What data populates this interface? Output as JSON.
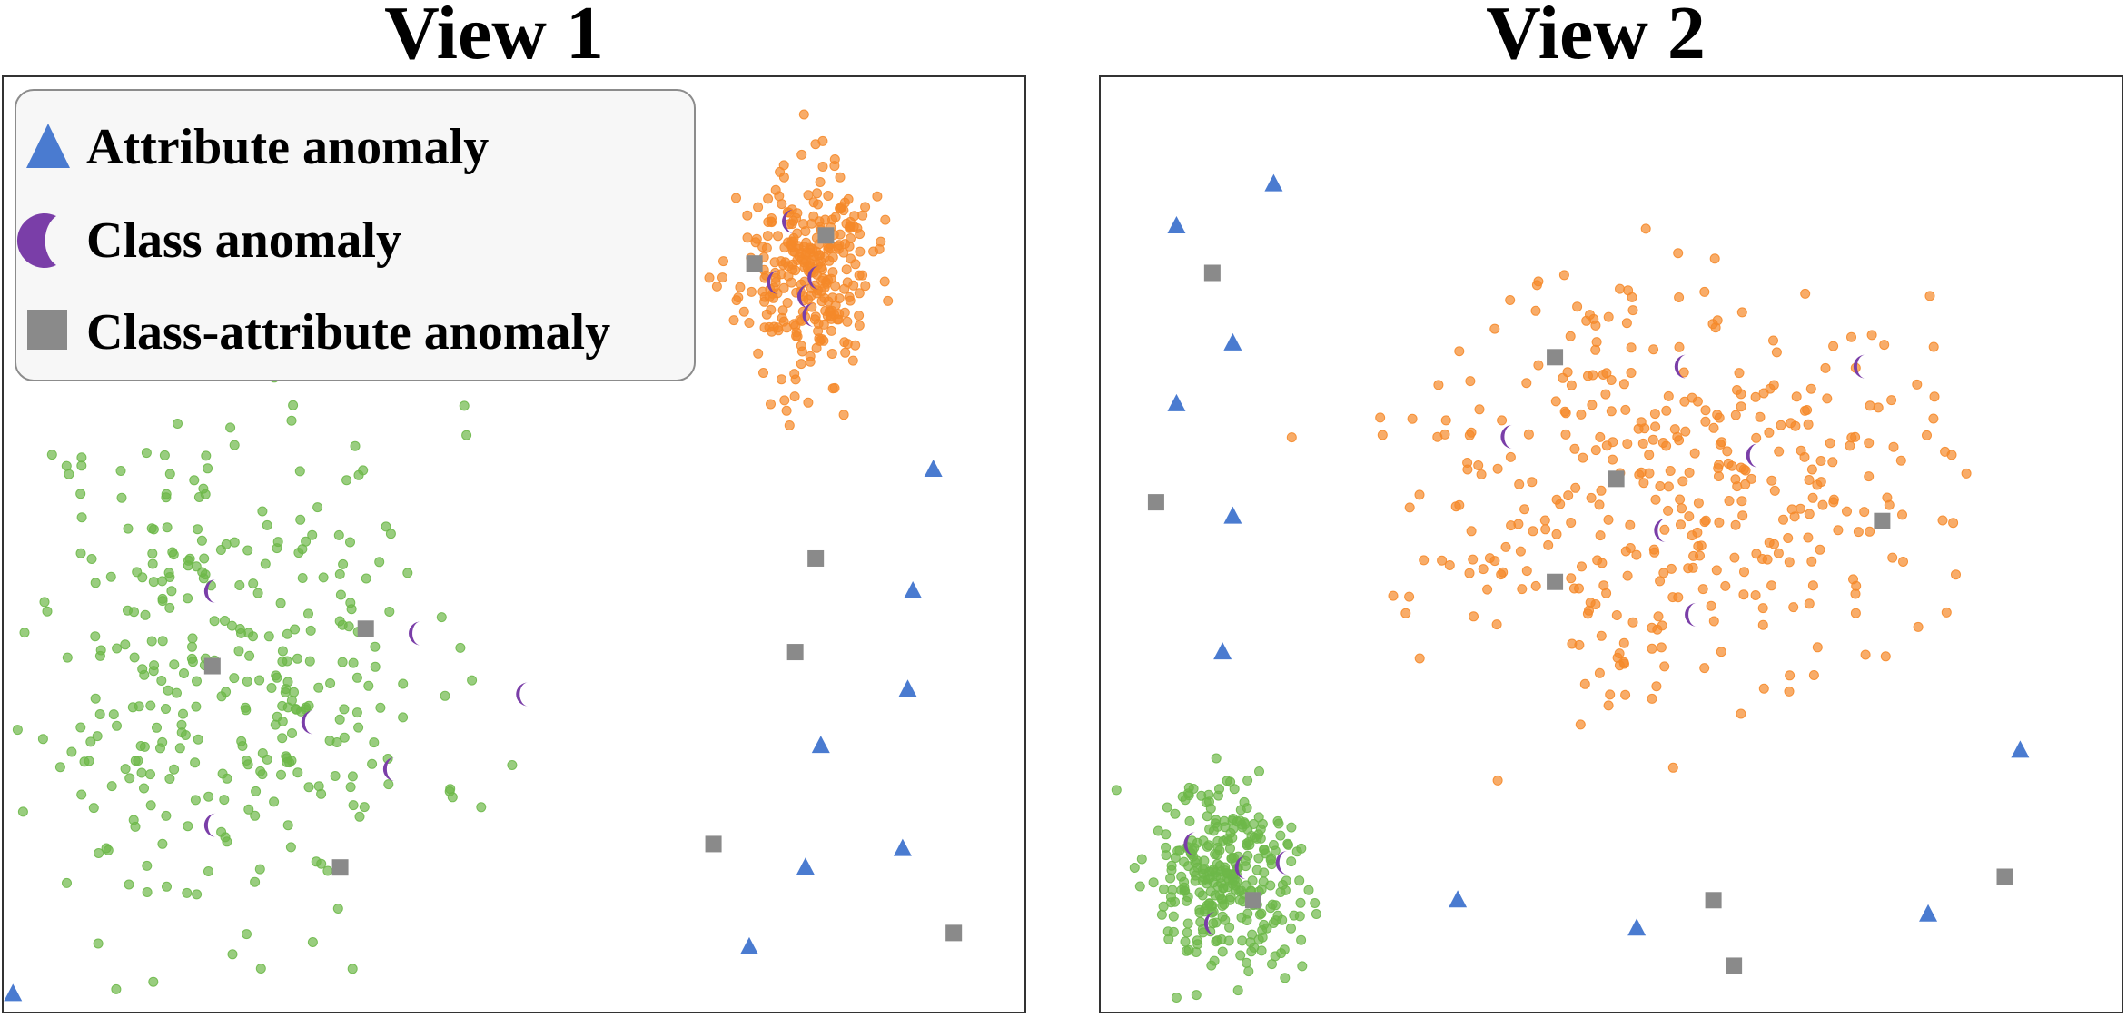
{
  "figure": {
    "legend": {
      "items": [
        {
          "label": "Attribute anomaly",
          "marker": "triangle",
          "color": "#4a7bd0"
        },
        {
          "label": "Class anomaly",
          "marker": "crescent",
          "color": "#7a3ea8"
        },
        {
          "label": "Class-attribute anomaly",
          "marker": "square",
          "color": "#8a8a8a"
        }
      ]
    },
    "colors": {
      "green_cluster": "#6db849",
      "orange_cluster": "#f5892a",
      "triangle": "#4a7bd0",
      "crescent": "#7a3ea8",
      "square": "#8a8a8a"
    }
  },
  "chart_data": [
    {
      "type": "scatter",
      "title": "View 1",
      "xlabel": "",
      "ylabel": "",
      "xlim": [
        0,
        100
      ],
      "ylim": [
        0,
        100
      ],
      "grid": false,
      "clusters": [
        {
          "name": "green cluster",
          "color": "#6db849",
          "count": 330,
          "center": [
            22,
            37
          ],
          "spread": [
            10,
            14
          ],
          "seed": 11
        },
        {
          "name": "orange cluster",
          "color": "#f5892a",
          "count": 300,
          "center": [
            78.5,
            79
          ],
          "spread": [
            3.2,
            5.5
          ],
          "seed": 23
        }
      ],
      "series": [
        {
          "name": "Attribute anomaly",
          "marker": "triangle",
          "points": [
            [
              1,
              2
            ],
            [
              91,
              58
            ],
            [
              89,
              45
            ],
            [
              88.5,
              34.5
            ],
            [
              80,
              28.5
            ],
            [
              88,
              17.5
            ],
            [
              78.5,
              15.5
            ],
            [
              73,
              7
            ]
          ]
        },
        {
          "name": "Class anomaly",
          "marker": "crescent",
          "points": [
            [
              77,
              84.5
            ],
            [
              79.5,
              78.5
            ],
            [
              78.5,
              76.5
            ],
            [
              75.5,
              78
            ],
            [
              79,
              74.5
            ],
            [
              20.5,
              45
            ],
            [
              40.5,
              40.5
            ],
            [
              51,
              34
            ],
            [
              30,
              31
            ],
            [
              38,
              26
            ],
            [
              20.5,
              20
            ]
          ]
        },
        {
          "name": "Class-attribute anomaly",
          "marker": "square",
          "points": [
            [
              73.5,
              80
            ],
            [
              80.5,
              83
            ],
            [
              79.5,
              48.5
            ],
            [
              35.5,
              41
            ],
            [
              77.5,
              38.5
            ],
            [
              20.5,
              37
            ],
            [
              69.5,
              18
            ],
            [
              33,
              15.5
            ],
            [
              93,
              8.5
            ]
          ]
        }
      ]
    },
    {
      "type": "scatter",
      "title": "View 2",
      "xlabel": "",
      "ylabel": "",
      "xlim": [
        0,
        100
      ],
      "ylim": [
        0,
        100
      ],
      "grid": false,
      "clusters": [
        {
          "name": "orange cluster",
          "color": "#f5892a",
          "count": 380,
          "center": [
            56,
            57
          ],
          "spread": [
            12,
            11
          ],
          "seed": 37
        },
        {
          "name": "green cluster",
          "color": "#6db849",
          "count": 300,
          "center": [
            12.5,
            14
          ],
          "spread": [
            3.6,
            5
          ],
          "seed": 51
        }
      ],
      "series": [
        {
          "name": "Attribute anomaly",
          "marker": "triangle",
          "points": [
            [
              17,
              88.5
            ],
            [
              7.5,
              84
            ],
            [
              13,
              71.5
            ],
            [
              7.5,
              65
            ],
            [
              13,
              53
            ],
            [
              12,
              38.5
            ],
            [
              90,
              28
            ],
            [
              35,
              12
            ],
            [
              52.5,
              9
            ],
            [
              81,
              10.5
            ]
          ]
        },
        {
          "name": "Class anomaly",
          "marker": "crescent",
          "points": [
            [
              57,
              69
            ],
            [
              74.5,
              69
            ],
            [
              40,
              61.5
            ],
            [
              64,
              59.5
            ],
            [
              55,
              51.5
            ],
            [
              58,
              42.5
            ],
            [
              9,
              18
            ],
            [
              14,
              15.5
            ],
            [
              18,
              16
            ],
            [
              11,
              9.5
            ]
          ]
        },
        {
          "name": "Class-attribute anomaly",
          "marker": "square",
          "points": [
            [
              11,
              79
            ],
            [
              44.5,
              70
            ],
            [
              5.5,
              54.5
            ],
            [
              50.5,
              57
            ],
            [
              44.5,
              46
            ],
            [
              76.5,
              52.5
            ],
            [
              15,
              12
            ],
            [
              60,
              12
            ],
            [
              88.5,
              14.5
            ],
            [
              62,
              5
            ]
          ]
        }
      ]
    }
  ]
}
